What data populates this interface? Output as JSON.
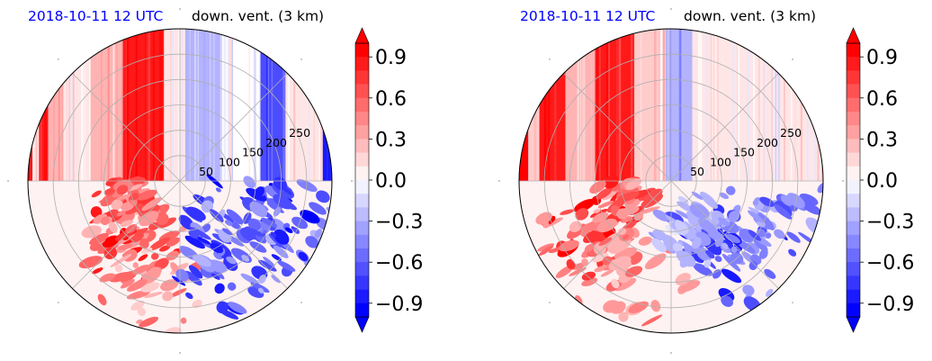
{
  "chart_data": [
    {
      "type": "heatmap",
      "projection": "polar",
      "title_left": "2018-10-11 12 UTC",
      "title_right": "down. vent. (3 km)",
      "radial_ticks": [
        "50",
        "100",
        "150",
        "200",
        "250"
      ],
      "radial_tick_values": [
        50,
        100,
        150,
        200,
        250
      ],
      "rlim": [
        0,
        300
      ],
      "grid": true,
      "colorbar": {
        "cmap": "bwr",
        "range": [
          -1.0,
          1.0
        ],
        "extend": "both",
        "ticks": [
          "0.9",
          "0.6",
          "0.3",
          "0.0",
          "−0.3",
          "−0.6",
          "−0.9"
        ],
        "tick_values": [
          0.9,
          0.6,
          0.3,
          0.0,
          -0.3,
          -0.6,
          -0.9
        ],
        "levels": 20
      },
      "upper_half_stripes": [
        {
          "angle_start_deg": 180,
          "angle_end_deg": 166,
          "value": 1.0
        },
        {
          "angle_start_deg": 166,
          "angle_end_deg": 158,
          "value": 0.15
        },
        {
          "angle_start_deg": 158,
          "angle_end_deg": 150,
          "value": 0.9
        },
        {
          "angle_start_deg": 150,
          "angle_end_deg": 140,
          "value": 0.3
        },
        {
          "angle_start_deg": 140,
          "angle_end_deg": 126,
          "value": 0.1
        },
        {
          "angle_start_deg": 126,
          "angle_end_deg": 112,
          "value": 0.25
        },
        {
          "angle_start_deg": 112,
          "angle_end_deg": 96,
          "value": 0.95
        },
        {
          "angle_start_deg": 96,
          "angle_end_deg": 88,
          "value": 0.05
        },
        {
          "angle_start_deg": 88,
          "angle_end_deg": 74,
          "value": -0.3
        },
        {
          "angle_start_deg": 74,
          "angle_end_deg": 58,
          "value": -0.05
        },
        {
          "angle_start_deg": 58,
          "angle_end_deg": 46,
          "value": -0.7
        },
        {
          "angle_start_deg": 46,
          "angle_end_deg": 20,
          "value": 0.05
        },
        {
          "angle_start_deg": 20,
          "angle_end_deg": 0,
          "value": -0.9
        }
      ],
      "lower_half_regions": [
        {
          "angle_deg": 225,
          "radius": 200,
          "value": 0.95
        },
        {
          "angle_deg": 200,
          "radius": 130,
          "value": 0.8
        },
        {
          "angle_deg": 250,
          "radius": 260,
          "value": 0.6
        },
        {
          "angle_deg": 300,
          "radius": 220,
          "value": -0.9
        },
        {
          "angle_deg": 330,
          "radius": 250,
          "value": -0.8
        },
        {
          "angle_deg": 355,
          "radius": 270,
          "value": -1.0
        }
      ]
    },
    {
      "type": "heatmap",
      "projection": "polar",
      "title_left": "2018-10-11 12 UTC",
      "title_right": "down. vent. (3 km)",
      "radial_ticks": [
        "50",
        "100",
        "150",
        "200",
        "250"
      ],
      "radial_tick_values": [
        50,
        100,
        150,
        200,
        250
      ],
      "rlim": [
        0,
        300
      ],
      "grid": true,
      "colorbar": {
        "cmap": "bwr",
        "range": [
          -1.0,
          1.0
        ],
        "extend": "both",
        "ticks": [
          "0.9",
          "0.6",
          "0.3",
          "0.0",
          "−0.3",
          "−0.6",
          "−0.9"
        ],
        "tick_values": [
          0.9,
          0.6,
          0.3,
          0.0,
          -0.3,
          -0.6,
          -0.9
        ],
        "levels": 20
      },
      "upper_half_stripes": [
        {
          "angle_start_deg": 180,
          "angle_end_deg": 160,
          "value": 1.0
        },
        {
          "angle_start_deg": 160,
          "angle_end_deg": 150,
          "value": 0.2
        },
        {
          "angle_start_deg": 150,
          "angle_end_deg": 134,
          "value": 0.9
        },
        {
          "angle_start_deg": 134,
          "angle_end_deg": 120,
          "value": 0.3
        },
        {
          "angle_start_deg": 120,
          "angle_end_deg": 104,
          "value": 0.85
        },
        {
          "angle_start_deg": 104,
          "angle_end_deg": 92,
          "value": 0.2
        },
        {
          "angle_start_deg": 92,
          "angle_end_deg": 82,
          "value": -0.35
        },
        {
          "angle_start_deg": 82,
          "angle_end_deg": 70,
          "value": 0.15
        },
        {
          "angle_start_deg": 70,
          "angle_end_deg": 40,
          "value": 0.05
        },
        {
          "angle_start_deg": 40,
          "angle_end_deg": 0,
          "value": 0.1
        }
      ],
      "lower_half_regions": [
        {
          "angle_deg": 215,
          "radius": 220,
          "value": 1.0
        },
        {
          "angle_deg": 195,
          "radius": 130,
          "value": 0.85
        },
        {
          "angle_deg": 240,
          "radius": 250,
          "value": 0.6
        },
        {
          "angle_deg": 310,
          "radius": 230,
          "value": -0.85
        },
        {
          "angle_deg": 290,
          "radius": 150,
          "value": -0.4
        },
        {
          "angle_deg": 335,
          "radius": 260,
          "value": -0.7
        }
      ]
    }
  ]
}
